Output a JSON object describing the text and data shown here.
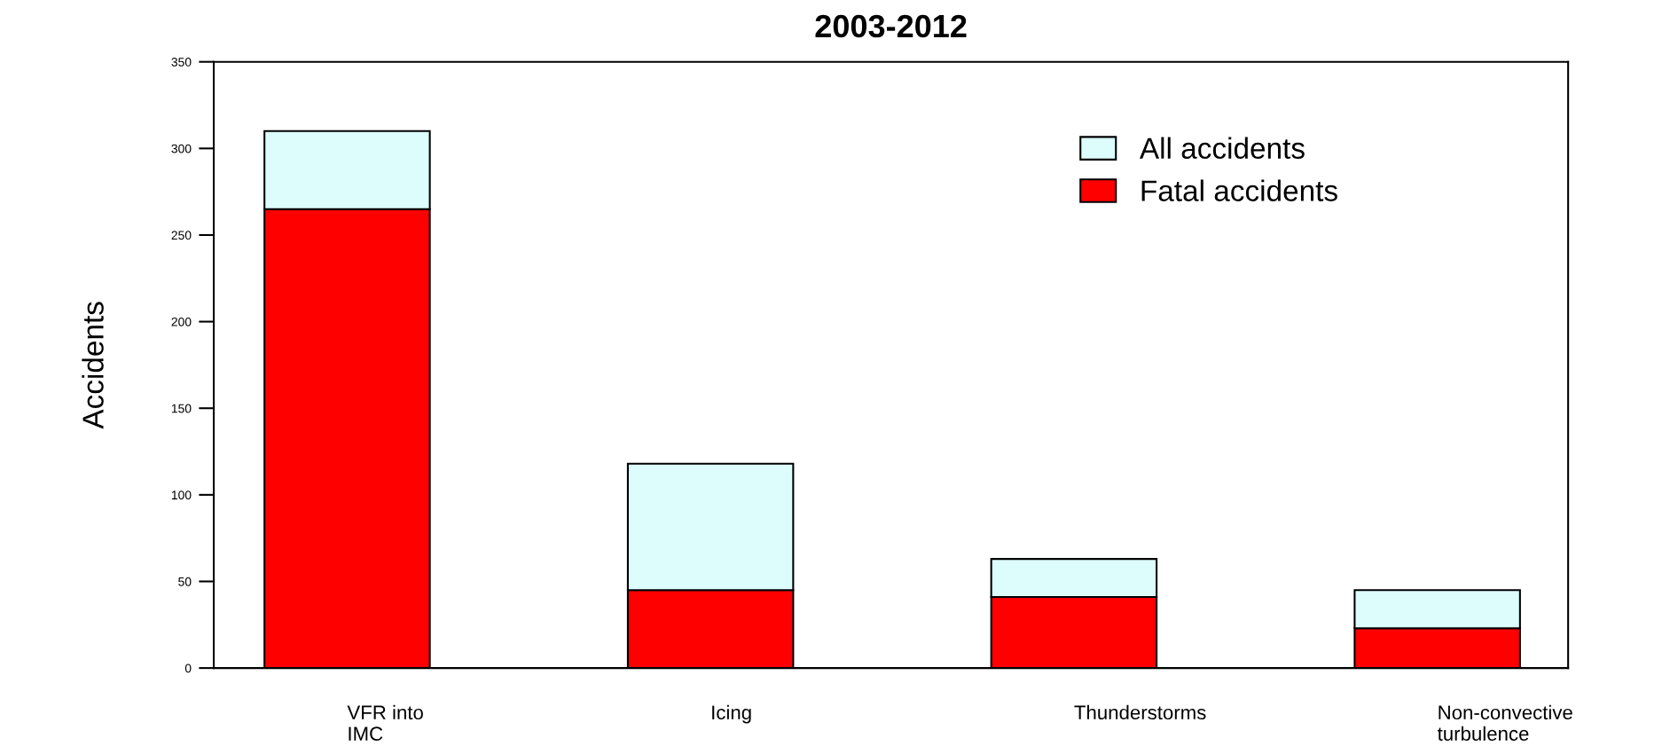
{
  "chart_data": {
    "type": "bar",
    "title": "2003-2012",
    "ylabel": "Accidents",
    "categories": [
      "VFR into\nIMC",
      "Icing",
      "Thunderstorms",
      "Non-convective\nturbulence"
    ],
    "stacked": true,
    "series": [
      {
        "name": "Fatal accidents",
        "color": "#ff0000",
        "values": [
          265,
          45,
          41,
          23
        ]
      },
      {
        "name": "All accidents",
        "color": "#ddfdfd",
        "values": [
          45,
          73,
          22,
          22
        ]
      }
    ],
    "ylim": [
      0,
      350
    ],
    "yticks": [
      0,
      50,
      100,
      150,
      200,
      250,
      300,
      350
    ],
    "grid": false,
    "legend": "top right"
  }
}
